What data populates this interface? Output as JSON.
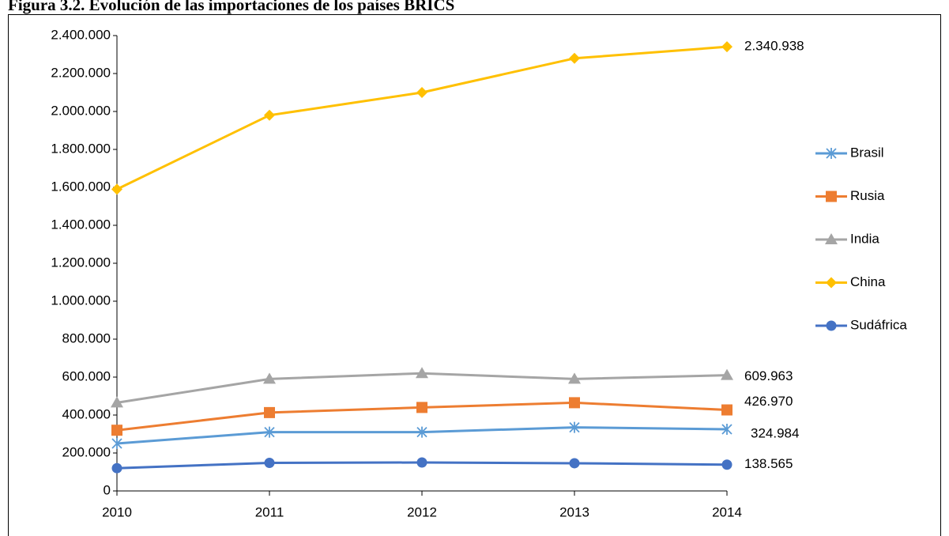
{
  "chart_data": {
    "type": "line",
    "title": "Figura 3.2. Evolución de las importaciones de los países BRICS",
    "categories": [
      "2010",
      "2011",
      "2012",
      "2013",
      "2014"
    ],
    "series": [
      {
        "name": "Brasil",
        "color": "#5b9bd5",
        "marker": "asterisk",
        "values": [
          250000,
          310000,
          310000,
          335000,
          324984
        ],
        "value_labels": [
          null,
          null,
          null,
          null,
          "324.984"
        ]
      },
      {
        "name": "Rusia",
        "color": "#ed7d31",
        "marker": "square",
        "values": [
          320000,
          413000,
          440000,
          465000,
          426970
        ],
        "value_labels": [
          null,
          null,
          null,
          null,
          "426.970"
        ]
      },
      {
        "name": "India",
        "color": "#a5a5a5",
        "marker": "triangle",
        "values": [
          465000,
          590000,
          620000,
          590000,
          609963
        ],
        "value_labels": [
          null,
          null,
          null,
          null,
          "609.963"
        ]
      },
      {
        "name": "China",
        "color": "#ffc000",
        "marker": "diamond",
        "values": [
          1590000,
          1980000,
          2100000,
          2280000,
          2340938
        ],
        "value_labels": [
          null,
          null,
          null,
          null,
          "2.340.938"
        ]
      },
      {
        "name": "Sudáfrica",
        "color": "#4472c4",
        "marker": "circle",
        "values": [
          120000,
          148000,
          150000,
          146000,
          138565
        ],
        "value_labels": [
          null,
          null,
          null,
          null,
          "138.565"
        ]
      }
    ],
    "ylim": [
      0,
      2400000
    ],
    "yticks": [
      0,
      {
        "value": 200000,
        "label": "200.000"
      },
      {
        "value": 400000,
        "label": "400.000"
      },
      {
        "value": 600000,
        "label": "600.000"
      },
      {
        "value": 800000,
        "label": "800.000"
      },
      {
        "value": 1000000,
        "label": "1.000.000"
      },
      {
        "value": 1200000,
        "label": "1.200.000"
      },
      {
        "value": 1400000,
        "label": "1.400.000"
      },
      {
        "value": 1600000,
        "label": "1.600.000"
      },
      {
        "value": 1800000,
        "label": "1.800.000"
      },
      {
        "value": 2000000,
        "label": "2.000.000"
      },
      {
        "value": 2200000,
        "label": "2.200.000"
      },
      {
        "value": 2400000,
        "label": "2.400.000"
      }
    ],
    "grid": false,
    "legend": "right"
  }
}
